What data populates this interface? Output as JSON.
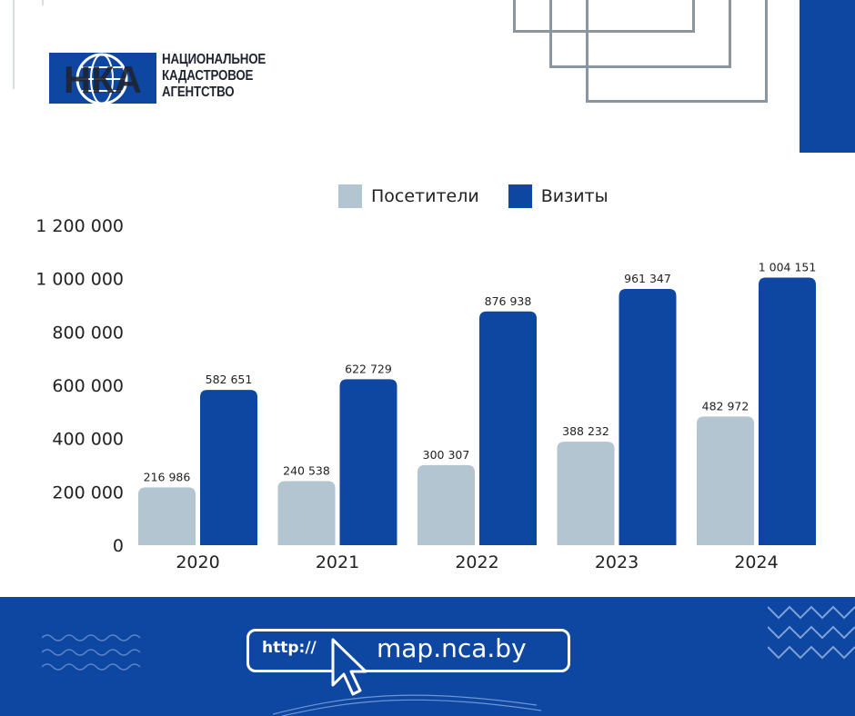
{
  "logo": {
    "lines": [
      "НАЦИОНАЛЬНОЕ",
      "КАДАСТРОВОЕ",
      "АГЕНТСТВО"
    ],
    "mark_letters": "НКА",
    "colors": {
      "mark": "#0d47a1",
      "text": "#1f2430"
    }
  },
  "legend": [
    {
      "label": "Посетители",
      "color": "#b3c5d1"
    },
    {
      "label": "Визиты",
      "color": "#0d47a1"
    }
  ],
  "chart_data": {
    "type": "bar",
    "title": "",
    "xlabel": "",
    "ylabel": "",
    "categories": [
      "2020",
      "2021",
      "2022",
      "2023",
      "2024"
    ],
    "series": [
      {
        "name": "Посетители",
        "color": "#b3c5d1",
        "values": [
          216986,
          240538,
          300307,
          388232,
          482972
        ],
        "labels": [
          "216 986",
          "240 538",
          "300 307",
          "388 232",
          "482 972"
        ]
      },
      {
        "name": "Визиты",
        "color": "#0d47a1",
        "values": [
          582651,
          622729,
          876938,
          961347,
          1004151
        ],
        "labels": [
          "582 651",
          "622 729",
          "876 938",
          "961 347",
          "1 004 151"
        ]
      }
    ],
    "ylim": [
      0,
      1200000
    ],
    "yticks": [
      0,
      200000,
      400000,
      600000,
      800000,
      1000000,
      1200000
    ],
    "ytick_labels": [
      "0",
      "200 000",
      "400 000",
      "600 000",
      "800 000",
      "1 000 000",
      "1 200 000"
    ],
    "grid": false,
    "legend_position": "top-center"
  },
  "footer": {
    "url_prefix": "http://",
    "url": "map.nca.by",
    "background": "#0d47a1"
  }
}
